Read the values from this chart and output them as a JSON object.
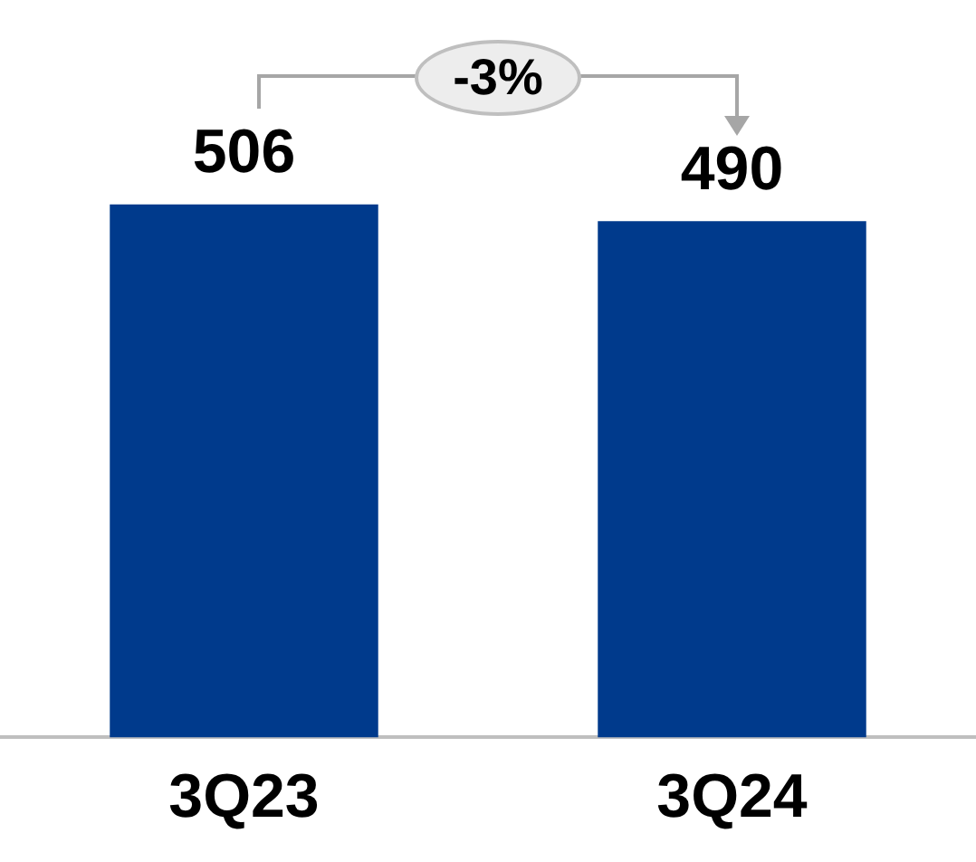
{
  "chart_data": {
    "type": "bar",
    "categories": [
      "3Q23",
      "3Q24"
    ],
    "values": [
      506,
      490
    ],
    "color": "#003a8c",
    "data_labels": true,
    "grid": false,
    "legend": false,
    "annotations": [
      "-3%"
    ]
  }
}
